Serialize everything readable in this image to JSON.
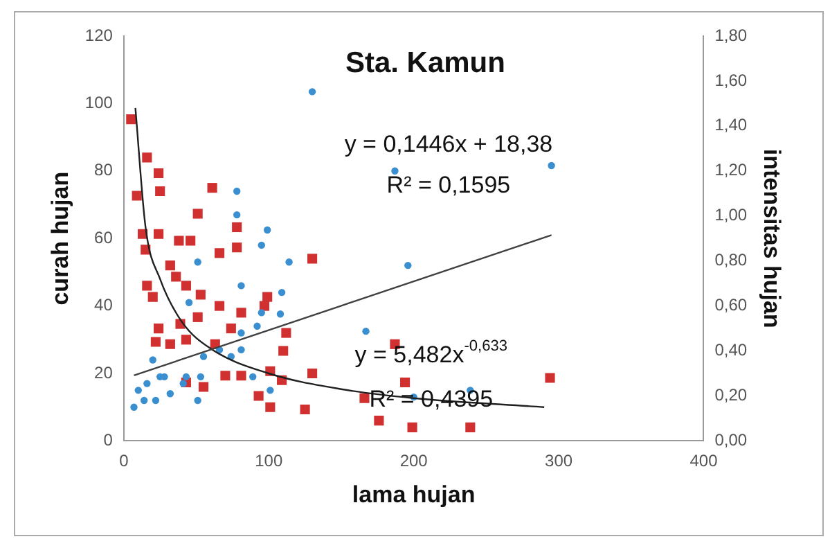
{
  "chart_data": {
    "type": "scatter",
    "title": "Sta. Kamun",
    "xlabel": "lama hujan",
    "ylabel": "curah hujan",
    "y2label": "intensitas hujan",
    "xlim": [
      0,
      400
    ],
    "xticks": [
      0,
      100,
      200,
      300,
      400
    ],
    "ylim": [
      0,
      120
    ],
    "yticks": [
      0,
      20,
      40,
      60,
      80,
      100,
      120
    ],
    "y2lim": [
      0,
      1.8
    ],
    "y2ticks": [
      {
        "value": 0,
        "label": "0,00"
      },
      {
        "value": 0.2,
        "label": "0,20"
      },
      {
        "value": 0.4,
        "label": "0,40"
      },
      {
        "value": 0.6,
        "label": "0,60"
      },
      {
        "value": 0.8,
        "label": "0,80"
      },
      {
        "value": 1,
        "label": "1,00"
      },
      {
        "value": 1.2,
        "label": "1,20"
      },
      {
        "value": 1.4,
        "label": "1,40"
      },
      {
        "value": 1.6,
        "label": "1,60"
      },
      {
        "value": 1.8,
        "label": "1,80"
      }
    ],
    "grid": false,
    "legend": false,
    "annotations": [
      "y = 0,1446x + 18,38",
      "R² = 0,1595",
      "y = 5,482x$^{-0,633}$",
      "R² = 0,4395"
    ],
    "series": [
      {
        "marker": "circle",
        "color": "#3a8fd0",
        "x": [
          130,
          187,
          295,
          78,
          78,
          99,
          95,
          114,
          51,
          81,
          109,
          45,
          95,
          108,
          167,
          196,
          239,
          200,
          7,
          16,
          20,
          25,
          32,
          43,
          51,
          55,
          66,
          74,
          81,
          89,
          101,
          10,
          22,
          28,
          41,
          14,
          53,
          81,
          92
        ],
        "values": [
          103.5,
          80,
          81.6,
          74,
          67,
          62.5,
          58,
          53,
          53,
          46,
          44,
          41,
          38,
          37.6,
          32.5,
          52,
          15,
          13,
          10,
          17,
          24,
          19,
          14,
          19,
          12,
          25,
          27,
          25,
          27,
          19,
          15,
          15,
          12,
          19,
          17,
          12,
          19,
          32,
          34
        ]
      },
      {
        "marker": "square",
        "axis": "y2",
        "color": "#d03030",
        "x": [
          5,
          16,
          24,
          9,
          25,
          61,
          51,
          78,
          13,
          24,
          15,
          38,
          46,
          66,
          78,
          130,
          32,
          36,
          16,
          20,
          43,
          53,
          66,
          81,
          99,
          97,
          24,
          39,
          51,
          74,
          22,
          32,
          43,
          63,
          112,
          110,
          187,
          43,
          55,
          70,
          81,
          93,
          101,
          101,
          130,
          166,
          176,
          194,
          199,
          239,
          294,
          125,
          109
        ],
        "values": [
          1.43,
          1.26,
          1.19,
          1.09,
          1.11,
          1.125,
          1.01,
          0.95,
          0.92,
          0.92,
          0.85,
          0.89,
          0.89,
          0.835,
          0.86,
          0.81,
          0.78,
          0.73,
          0.69,
          0.64,
          0.69,
          0.65,
          0.6,
          0.57,
          0.64,
          0.6,
          0.5,
          0.52,
          0.55,
          0.5,
          0.44,
          0.43,
          0.45,
          0.43,
          0.48,
          0.4,
          0.43,
          0.26,
          0.24,
          0.29,
          0.29,
          0.2,
          0.15,
          0.31,
          0.3,
          0.19,
          0.09,
          0.26,
          0.06,
          0.06,
          0.28,
          0.14,
          0.27
        ]
      },
      {
        "type": "line",
        "marker": "none",
        "color": "#404040",
        "x": [
          7,
          295
        ],
        "values": [
          19.4,
          61
        ]
      },
      {
        "type": "line",
        "marker": "none",
        "axis": "y2",
        "color": "#202020",
        "x": [
          8,
          15,
          25,
          40,
          60,
          100,
          150,
          200,
          290
        ],
        "values": [
          1.48,
          0.95,
          0.72,
          0.53,
          0.41,
          0.3,
          0.23,
          0.19,
          0.15
        ]
      }
    ]
  }
}
